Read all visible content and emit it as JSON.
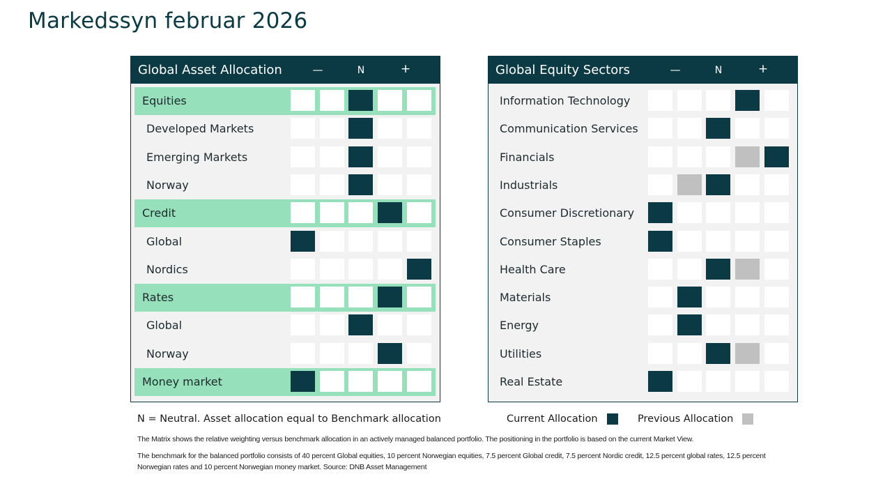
{
  "title": "Markedssyn februar 2026",
  "header_cols": {
    "minus": "—",
    "neutral": "N",
    "plus": "+"
  },
  "colors": {
    "current": "#0b3a44",
    "previous": "#c0c0c0",
    "highlight": "#96e0bc",
    "empty": "#ffffff"
  },
  "asset_allocation": {
    "title": "Global Asset Allocation",
    "rows": [
      {
        "label": "Equities",
        "main": true,
        "current": 2,
        "previous": null
      },
      {
        "label": "Developed Markets",
        "main": false,
        "current": 2,
        "previous": null
      },
      {
        "label": "Emerging Markets",
        "main": false,
        "current": 2,
        "previous": null
      },
      {
        "label": "Norway",
        "main": false,
        "current": 2,
        "previous": null
      },
      {
        "label": "Credit",
        "main": true,
        "current": 3,
        "previous": null
      },
      {
        "label": "Global",
        "main": false,
        "current": 0,
        "previous": null
      },
      {
        "label": "Nordics",
        "main": false,
        "current": 4,
        "previous": null
      },
      {
        "label": "Rates",
        "main": true,
        "current": 3,
        "previous": null
      },
      {
        "label": "Global",
        "main": false,
        "current": 2,
        "previous": null
      },
      {
        "label": "Norway",
        "main": false,
        "current": 3,
        "previous": null
      },
      {
        "label": "Money market",
        "main": true,
        "current": 0,
        "previous": null
      }
    ]
  },
  "equity_sectors": {
    "title": "Global Equity Sectors",
    "rows": [
      {
        "label": "Information Technology",
        "current": 3,
        "previous": null
      },
      {
        "label": "Communication Services",
        "current": 2,
        "previous": null
      },
      {
        "label": "Financials",
        "current": 4,
        "previous": 3
      },
      {
        "label": "Industrials",
        "current": 2,
        "previous": 1
      },
      {
        "label": "Consumer Discretionary",
        "current": 0,
        "previous": null
      },
      {
        "label": "Consumer Staples",
        "current": 0,
        "previous": null
      },
      {
        "label": "Health Care",
        "current": 2,
        "previous": 3
      },
      {
        "label": "Materials",
        "current": 1,
        "previous": null
      },
      {
        "label": "Energy",
        "current": 1,
        "previous": null
      },
      {
        "label": "Utilities",
        "current": 2,
        "previous": 3
      },
      {
        "label": "Real Estate",
        "current": 0,
        "previous": null
      }
    ]
  },
  "legend": {
    "note": "N = Neutral. Asset allocation equal to Benchmark allocation",
    "current_label": "Current Allocation",
    "previous_label": "Previous Allocation"
  },
  "footnotes": {
    "line1": "The Matrix shows the relative weighting versus benchmark allocation in an actively managed balanced portfolio. The positioning in the portfolio is based on the current Market View.",
    "line2": "The benchmark for the balanced portfolio consists of 40 percent Global equities, 10 percent Norwegian equities, 7.5 percent Global credit, 7.5 percent Nordic credit, 12.5 percent global rates, 12.5 percent Norwegian rates and 10 percent Norwegian money market. Source: DNB Asset Management"
  }
}
